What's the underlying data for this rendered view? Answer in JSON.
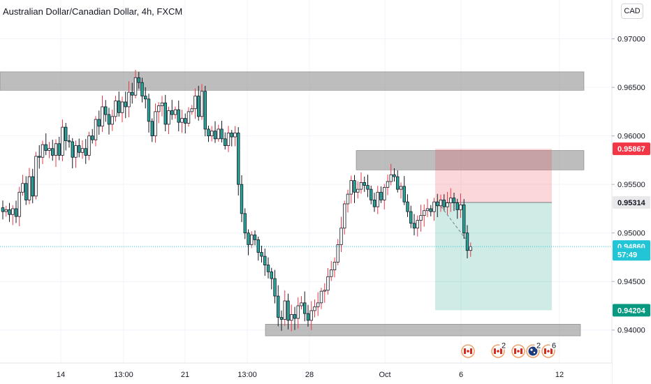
{
  "header": {
    "title": "Australian Dollar/Canadian Dollar, 4h, FXCM",
    "currency_button": "CAD"
  },
  "chart_data": {
    "type": "candlestick",
    "symbol": "AUDCAD",
    "timeframe": "4h",
    "y_ticks": [
      "0.97000",
      "0.96500",
      "0.96000",
      "0.95500",
      "0.95000",
      "0.94500",
      "0.94000"
    ],
    "y_tick_values": [
      0.97,
      0.965,
      0.96,
      0.955,
      0.95,
      0.945,
      0.94
    ],
    "x_ticks": [
      "14",
      "13:00",
      "21",
      "13:00",
      "28",
      "Oct",
      "6",
      "12"
    ],
    "ylim": [
      0.9366,
      0.974
    ],
    "price_tags": [
      {
        "label": "0.95867",
        "value": 0.95867,
        "bg": "#f23645",
        "color": "#ffffff"
      },
      {
        "label": "0.95314",
        "value": 0.95314,
        "bg": "#e9e9ec",
        "color": "#131722"
      },
      {
        "label": "0.94860",
        "value": 0.9486,
        "bg": "#22c5d6",
        "color": "#ffffff"
      },
      {
        "label": "57:49",
        "value": 0.9478,
        "bg": "#22c5d6",
        "color": "#ffffff",
        "secondary": true
      },
      {
        "label": "0.94204",
        "value": 0.94204,
        "bg": "#089981",
        "color": "#ffffff"
      }
    ],
    "zones": [
      {
        "name": "resistance-top",
        "from": 0.9647,
        "to": 0.9666
      },
      {
        "name": "resistance-mid",
        "from": 0.9565,
        "to": 0.9585
      },
      {
        "name": "support-bottom",
        "from": 0.9394,
        "to": 0.9406
      }
    ],
    "position": {
      "type": "short",
      "entry": 0.95314,
      "stop": 0.95867,
      "target": 0.94204
    },
    "current_price": 0.9486,
    "event_badges": [
      {
        "flag": "CA",
        "count": ""
      },
      {
        "flag": "CA",
        "count": "2"
      },
      {
        "flag": "CA",
        "count": ""
      },
      {
        "flag": "AU",
        "count": "2"
      },
      {
        "flag": "CA",
        "count": "6"
      }
    ],
    "colors": {
      "up": "#26a69a",
      "down": "#26a69a",
      "wick": "#131722",
      "wick_up": "#f23645",
      "wick_down": "#131722"
    },
    "series": [
      {
        "path": [
          0.9522,
          0.9524,
          0.9519,
          0.9525,
          0.9517,
          0.9542,
          0.9551,
          0.9534,
          0.9558,
          0.9538,
          0.9579,
          0.9578,
          0.9591,
          0.9585,
          0.9587,
          0.958,
          0.9592,
          0.958,
          0.9609,
          0.9595,
          0.9594,
          0.9578,
          0.959,
          0.9583,
          0.9587,
          0.958,
          0.96,
          0.9596,
          0.9617,
          0.961,
          0.963,
          0.9622,
          0.9612,
          0.962,
          0.9636,
          0.9624,
          0.9635,
          0.963,
          0.9645,
          0.9642,
          0.966,
          0.9655,
          0.9641,
          0.9638,
          0.9615,
          0.96,
          0.9625,
          0.9631,
          0.9634,
          0.9612,
          0.9626,
          0.9622,
          0.9627,
          0.9614,
          0.9618,
          0.9613,
          0.9625,
          0.9628,
          0.9641,
          0.962,
          0.9646,
          0.9607,
          0.96,
          0.9605,
          0.9597,
          0.9607,
          0.9597,
          0.959,
          0.9603,
          0.9599,
          0.9603,
          0.955,
          0.952,
          0.95,
          0.9488,
          0.9498,
          0.9493,
          0.948,
          0.9476,
          0.9467,
          0.946,
          0.9453,
          0.9435,
          0.9413,
          0.9411,
          0.943,
          0.941,
          0.9416,
          0.9412,
          0.9425,
          0.9428,
          0.9417,
          0.941,
          0.942,
          0.9424,
          0.9428,
          0.944,
          0.9441,
          0.9455,
          0.9462,
          0.947,
          0.9488,
          0.9505,
          0.953,
          0.954,
          0.9554,
          0.9542,
          0.9545,
          0.9552,
          0.9549,
          0.9545,
          0.9534,
          0.9527,
          0.9542,
          0.9534,
          0.9547,
          0.9553,
          0.956,
          0.9558,
          0.9545,
          0.9548,
          0.9532,
          0.9522,
          0.951,
          0.9505,
          0.9513,
          0.9518,
          0.9523,
          0.9525,
          0.9522,
          0.9532,
          0.9528,
          0.9534,
          0.9527,
          0.9531,
          0.9536,
          0.9531,
          0.9524,
          0.9529,
          0.95,
          0.9482,
          0.9486
        ]
      }
    ]
  }
}
